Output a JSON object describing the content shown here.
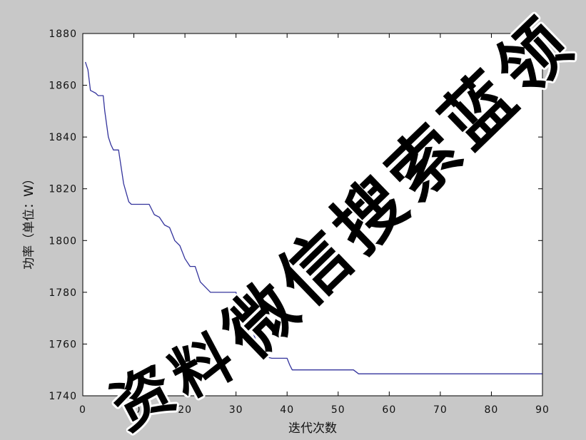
{
  "chart_data": {
    "type": "line",
    "title": "",
    "xlabel": "迭代次数",
    "ylabel": "功率（单位：W）",
    "xlim": [
      0,
      90
    ],
    "ylim": [
      1740,
      1880
    ],
    "xticks": [
      0,
      10,
      20,
      30,
      40,
      50,
      60,
      70,
      80,
      90
    ],
    "yticks": [
      1740,
      1760,
      1780,
      1800,
      1820,
      1840,
      1860,
      1880
    ],
    "grid": false,
    "legend": "none",
    "x": [
      0.5,
      1,
      1.5,
      2.5,
      3,
      4,
      4.3,
      5,
      5.5,
      6,
      7,
      8,
      9,
      9.5,
      13,
      14,
      15,
      16,
      17,
      18,
      19,
      20,
      21,
      22,
      23,
      24,
      25,
      30,
      30.5,
      31,
      32,
      33,
      34,
      35,
      36,
      37,
      40,
      40.5,
      41,
      53,
      54,
      90
    ],
    "y": [
      1869,
      1866,
      1858,
      1857,
      1856,
      1856,
      1850,
      1840,
      1837,
      1835,
      1835,
      1822,
      1815,
      1814,
      1814,
      1810,
      1809,
      1806,
      1805,
      1800,
      1798,
      1793,
      1790,
      1790,
      1784,
      1782,
      1780,
      1780,
      1775,
      1771,
      1769,
      1766,
      1761,
      1757,
      1755,
      1754.5,
      1754.5,
      1752,
      1750,
      1750,
      1748.5,
      1748.5
    ]
  },
  "watermark": {
    "diagonal": "微信搜索蓝领",
    "bottom": "资料"
  },
  "colors": {
    "figure_background": "#c8c8c8",
    "plot_background": "#ffffff",
    "axis": "#000000",
    "line": "#33339c"
  }
}
